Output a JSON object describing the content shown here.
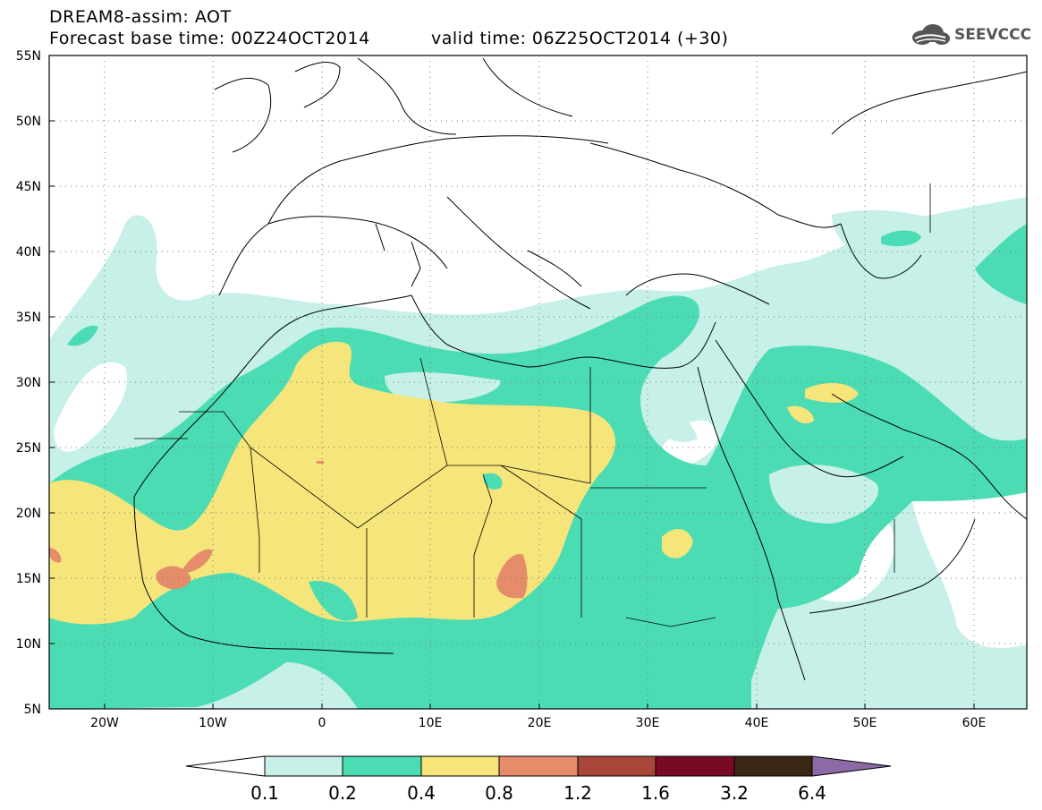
{
  "header": {
    "product": "DREAM8-assim: AOT",
    "base_time": "Forecast base time: 00Z24OCT2014",
    "valid_time": "valid time: 06Z25OCT2014 (+30)",
    "logo_text": "SEEVCCC",
    "logo_icon": "cloud-logo-icon"
  },
  "map": {
    "lat_labels": [
      "55N",
      "50N",
      "45N",
      "40N",
      "35N",
      "30N",
      "25N",
      "20N",
      "15N",
      "10N",
      "5N"
    ],
    "lon_labels": [
      "20W",
      "10W",
      "0",
      "10E",
      "20E",
      "30E",
      "40E",
      "50E",
      "60E"
    ],
    "lat_range": [
      5,
      55
    ],
    "lon_range": [
      -25,
      65
    ],
    "gridlines": "dotted"
  },
  "legend": {
    "levels": [
      "0.1",
      "0.2",
      "0.4",
      "0.8",
      "1.2",
      "1.6",
      "3.2",
      "6.4"
    ],
    "colors": [
      "#ffffff",
      "#c6f0e8",
      "#4bdcb4",
      "#f5e57a",
      "#e58c6b",
      "#a9463a",
      "#780a27",
      "#3a2614",
      "#8b6aa5"
    ]
  }
}
